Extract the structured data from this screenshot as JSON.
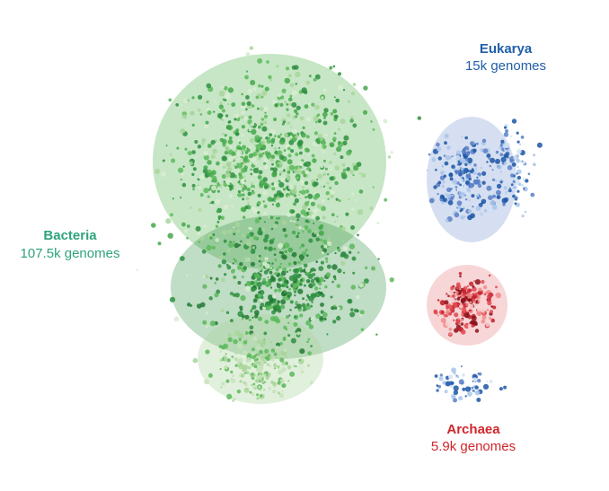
{
  "labels": [
    {
      "name": "Bacteria",
      "count": "107.5k genomes"
    },
    {
      "name": "Eukarya",
      "count": "15k genomes"
    },
    {
      "name": "Archaea",
      "count": "5.9k genomes"
    }
  ]
}
